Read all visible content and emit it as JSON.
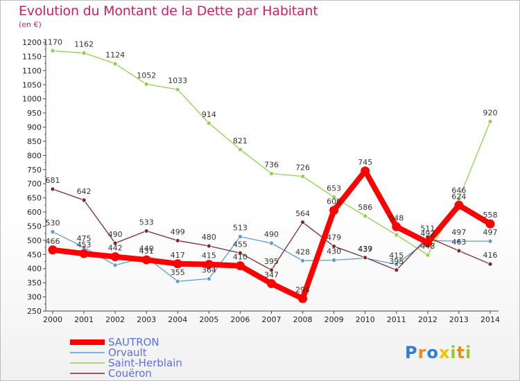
{
  "chart_data": {
    "type": "line",
    "title": "Evolution du Montant de la Dette par Habitant",
    "subtitle": "(en €)",
    "x": [
      "2000",
      "2001",
      "2002",
      "2003",
      "2004",
      "2005",
      "2006",
      "2007",
      "2008",
      "2009",
      "2010",
      "2011",
      "2012",
      "2013",
      "2014"
    ],
    "ylim": [
      250,
      1200
    ],
    "yticks": [
      250,
      300,
      350,
      400,
      450,
      500,
      550,
      600,
      650,
      700,
      750,
      800,
      850,
      900,
      950,
      1000,
      1050,
      1100,
      1150,
      1200
    ],
    "grid": false,
    "legend_position": "bottom-left",
    "series": [
      {
        "name": "Saint-Herblain",
        "color": "#8fd14f",
        "values": [
          1170,
          1162,
          1124,
          1052,
          1033,
          914,
          821,
          736,
          726,
          653,
          586,
          519,
          448,
          646,
          920
        ]
      },
      {
        "name": "Orvault",
        "color": "#5b9bd5",
        "values": [
          530,
          475,
          412,
          440,
          355,
          364,
          513,
          490,
          428,
          430,
          437,
          415,
          499,
          497,
          497
        ]
      },
      {
        "name": "Couëron",
        "color": "#7a2a2a",
        "values": [
          681,
          642,
          490,
          533,
          499,
          480,
          455,
          395,
          564,
          479,
          439,
          395,
          511,
          463,
          416
        ]
      },
      {
        "name": "SAUTRON",
        "color": "#ff0000",
        "values": [
          466,
          453,
          442,
          431,
          417,
          415,
          410,
          347,
          294,
          606,
          745,
          548,
          492,
          624,
          558
        ]
      }
    ],
    "labels": [
      {
        "series": "Saint-Herblain",
        "text": [
          "1170",
          "1162",
          "1124",
          "1052",
          "1033",
          "914",
          "821",
          "736",
          "726",
          "653",
          "586",
          "",
          "448",
          "646",
          "920"
        ]
      },
      {
        "series": "Orvault",
        "text": [
          "530",
          "475",
          "",
          "440",
          "355",
          "364",
          "513",
          "490",
          "428",
          "430",
          "437",
          "415",
          "",
          "497",
          "497"
        ]
      },
      {
        "series": "Couëron",
        "text": [
          "681",
          "642",
          "490",
          "533",
          "499",
          "480",
          "455",
          "395",
          "564",
          "479",
          "439",
          "395",
          "511",
          "463",
          "416"
        ]
      },
      {
        "series": "SAUTRON",
        "text": [
          "466",
          "453",
          "442",
          "431",
          "417",
          "415",
          "410",
          "347",
          "294",
          "606",
          "745",
          "548",
          "492",
          "624",
          "558"
        ]
      }
    ]
  },
  "legend": {
    "items": [
      {
        "name": "SAUTRON",
        "color": "#ff0000",
        "thick": true
      },
      {
        "name": "Orvault",
        "color": "#5b9bd5",
        "thick": false
      },
      {
        "name": "Saint-Herblain",
        "color": "#8fd14f",
        "thick": false
      },
      {
        "name": "Couëron",
        "color": "#7a2a2a",
        "thick": false
      }
    ]
  },
  "brand": {
    "letters": [
      "P",
      "r",
      "o",
      "x",
      "i",
      "t",
      "i"
    ],
    "colors": [
      "#2e7fd1",
      "#f08a1c",
      "#2e7fd1",
      "#f0c20a",
      "#8fc63a",
      "#f08a1c",
      "#8fc63a"
    ]
  }
}
